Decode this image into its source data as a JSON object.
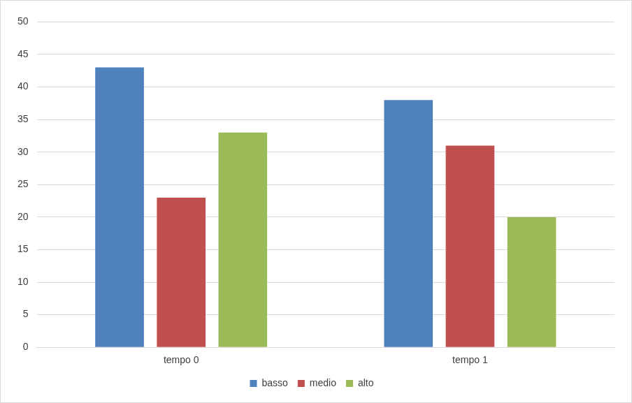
{
  "chart_data": {
    "type": "bar",
    "categories": [
      "tempo 0",
      "tempo 1"
    ],
    "series": [
      {
        "name": "basso",
        "color": "#4f81bd",
        "values": [
          43,
          38
        ]
      },
      {
        "name": "medio",
        "color": "#c0504d",
        "values": [
          23,
          31
        ]
      },
      {
        "name": "alto",
        "color": "#9bbb59",
        "values": [
          33,
          20
        ]
      }
    ],
    "ylim": [
      0,
      50
    ],
    "yticks": [
      0,
      5,
      10,
      15,
      20,
      25,
      30,
      35,
      40,
      45,
      50
    ],
    "grid": true,
    "legend": "bottom"
  }
}
